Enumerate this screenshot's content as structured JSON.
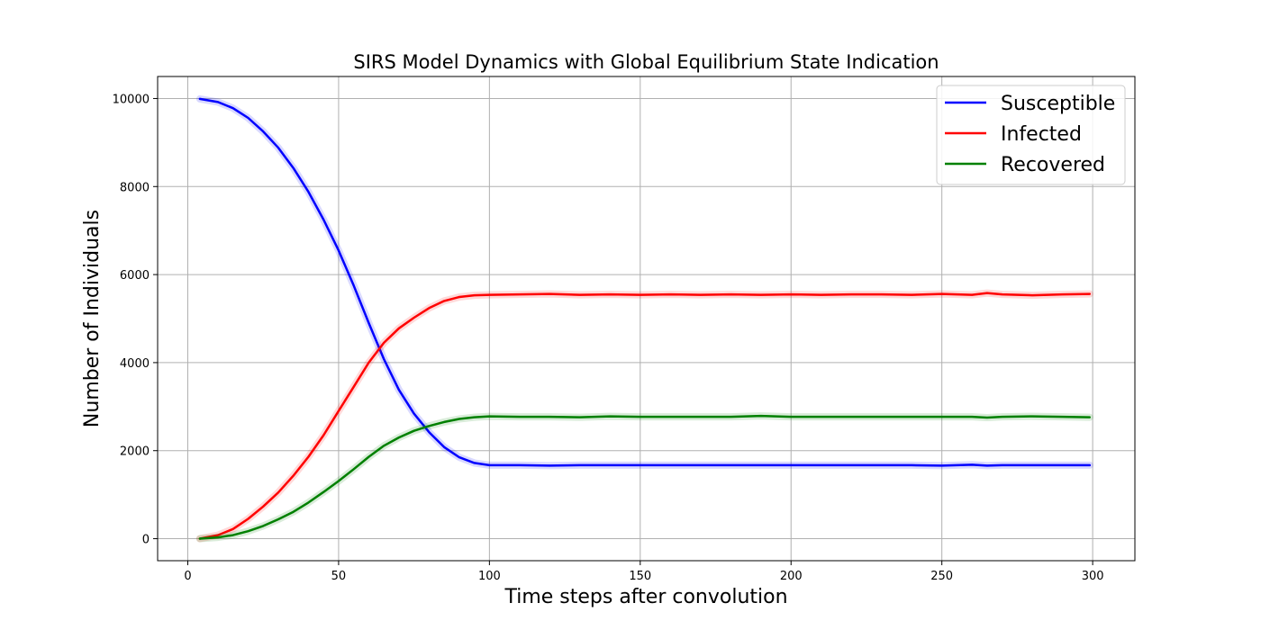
{
  "chart_data": {
    "type": "line",
    "title": "SIRS Model Dynamics with Global Equilibrium State Indication",
    "xlabel": "Time steps after convolution",
    "ylabel": "Number of Individuals",
    "xlim": [
      -10,
      314
    ],
    "ylim": [
      -500,
      10500
    ],
    "xticks": [
      0,
      50,
      100,
      150,
      200,
      250,
      300
    ],
    "yticks": [
      0,
      2000,
      4000,
      6000,
      8000,
      10000
    ],
    "grid": true,
    "legend_position": "top-right",
    "series": [
      {
        "name": "Susceptible",
        "color": "#0000ff",
        "x": [
          4,
          10,
          15,
          20,
          25,
          30,
          35,
          40,
          45,
          50,
          55,
          60,
          65,
          70,
          75,
          80,
          85,
          90,
          95,
          100,
          110,
          120,
          130,
          140,
          150,
          160,
          170,
          180,
          190,
          200,
          210,
          220,
          230,
          240,
          250,
          260,
          265,
          270,
          280,
          290,
          299
        ],
        "y": [
          9990,
          9920,
          9780,
          9560,
          9250,
          8880,
          8420,
          7880,
          7250,
          6550,
          5750,
          4900,
          4080,
          3380,
          2840,
          2420,
          2080,
          1850,
          1720,
          1670,
          1670,
          1660,
          1670,
          1670,
          1670,
          1670,
          1670,
          1670,
          1670,
          1670,
          1670,
          1670,
          1670,
          1670,
          1660,
          1680,
          1660,
          1670,
          1670,
          1670,
          1670
        ]
      },
      {
        "name": "Infected",
        "color": "#ff0000",
        "x": [
          4,
          10,
          15,
          20,
          25,
          30,
          35,
          40,
          45,
          50,
          55,
          60,
          65,
          70,
          75,
          80,
          85,
          90,
          95,
          100,
          110,
          120,
          130,
          140,
          150,
          160,
          170,
          180,
          190,
          200,
          210,
          220,
          230,
          240,
          250,
          260,
          265,
          270,
          280,
          290,
          299
        ],
        "y": [
          0,
          80,
          220,
          450,
          730,
          1050,
          1430,
          1860,
          2350,
          2900,
          3450,
          4000,
          4450,
          4780,
          5020,
          5240,
          5400,
          5490,
          5530,
          5540,
          5550,
          5560,
          5540,
          5550,
          5540,
          5550,
          5540,
          5550,
          5540,
          5550,
          5540,
          5550,
          5550,
          5540,
          5560,
          5540,
          5580,
          5550,
          5530,
          5550,
          5560
        ]
      },
      {
        "name": "Recovered",
        "color": "#008000",
        "x": [
          4,
          10,
          15,
          20,
          25,
          30,
          35,
          40,
          45,
          50,
          55,
          60,
          65,
          70,
          75,
          80,
          85,
          90,
          95,
          100,
          110,
          120,
          130,
          140,
          150,
          160,
          170,
          180,
          190,
          200,
          210,
          220,
          230,
          240,
          250,
          260,
          265,
          270,
          280,
          290,
          299
        ],
        "y": [
          0,
          30,
          80,
          170,
          290,
          440,
          610,
          820,
          1060,
          1310,
          1580,
          1860,
          2110,
          2300,
          2450,
          2560,
          2650,
          2720,
          2760,
          2780,
          2770,
          2770,
          2760,
          2780,
          2770,
          2770,
          2770,
          2770,
          2790,
          2770,
          2770,
          2770,
          2770,
          2770,
          2770,
          2770,
          2750,
          2770,
          2780,
          2770,
          2760
        ]
      }
    ]
  }
}
